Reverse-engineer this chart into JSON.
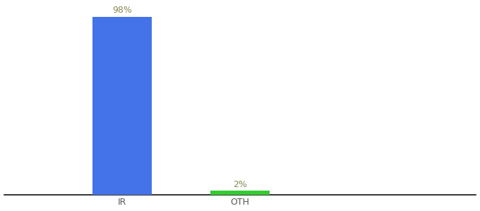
{
  "categories": [
    "IR",
    "OTH"
  ],
  "values": [
    98,
    2
  ],
  "bar_colors": [
    "#4472e8",
    "#33cc33"
  ],
  "label_color": "#888855",
  "value_labels": [
    "98%",
    "2%"
  ],
  "ylim": [
    0,
    105
  ],
  "background_color": "#ffffff",
  "bar_width": 0.5,
  "tick_fontsize": 9,
  "label_fontsize": 9,
  "x_positions": [
    1,
    2
  ],
  "xlim": [
    0,
    4
  ]
}
